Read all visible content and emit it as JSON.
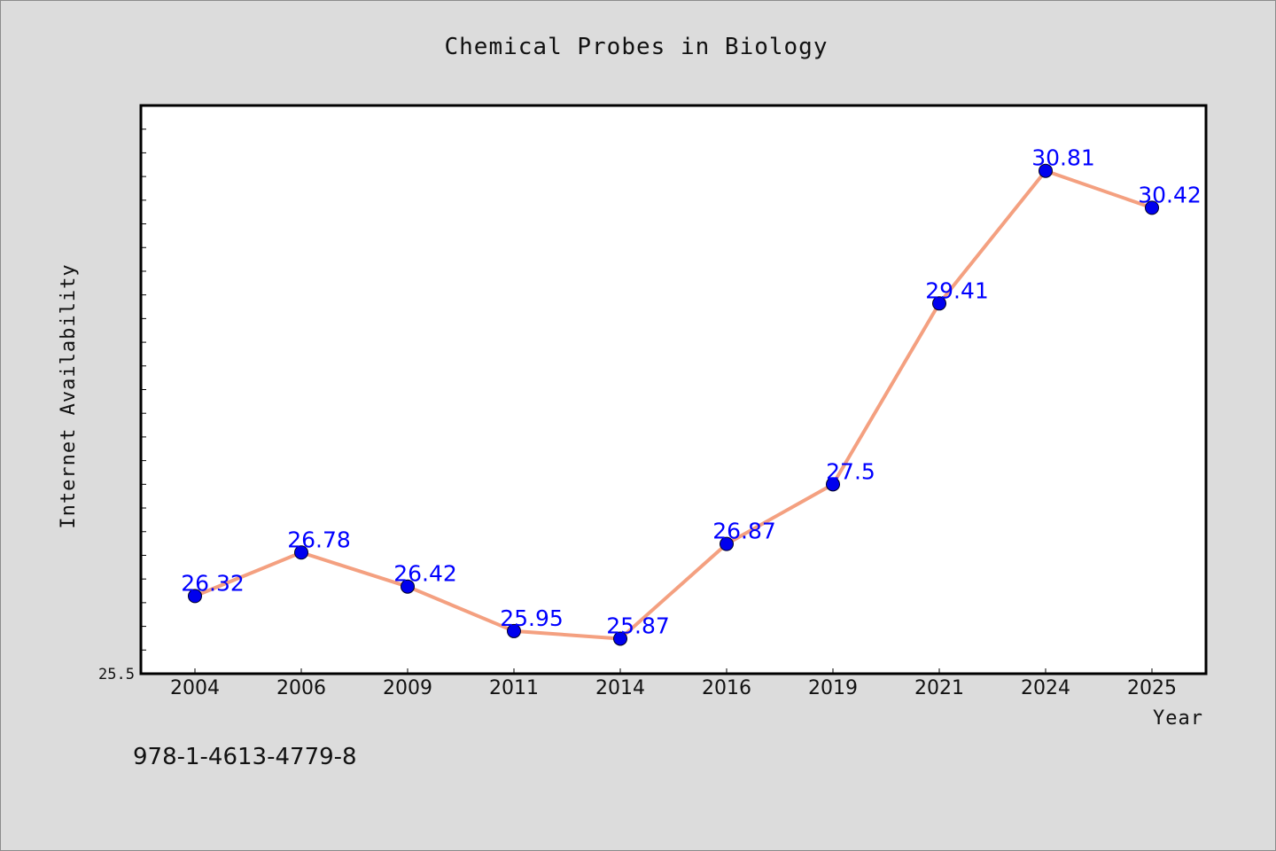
{
  "chart_data": {
    "type": "line",
    "title": "Chemical Probes in Biology",
    "xlabel": "Year",
    "ylabel": "Internet Availability",
    "categories": [
      "2004",
      "2006",
      "2009",
      "2011",
      "2014",
      "2016",
      "2019",
      "2021",
      "2024",
      "2025"
    ],
    "series": [
      {
        "values": [
          26.32,
          26.78,
          26.42,
          25.95,
          25.87,
          26.87,
          27.5,
          29.41,
          30.81,
          30.42
        ]
      }
    ],
    "data_labels": [
      "26.32",
      "26.78",
      "26.42",
      "25.95",
      "25.87",
      "26.87",
      "27.5",
      "29.41",
      "30.81",
      "30.42"
    ],
    "ylim": [
      25.5,
      31.5
    ],
    "y_tick_labels": [
      "25.5"
    ],
    "grid": false,
    "colors": {
      "line": "#f4a080",
      "marker": "#0000ee",
      "data_label": "#0000ff",
      "plot_background": "#ffffff",
      "page_background": "#dcdcdc"
    }
  },
  "footer": {
    "code": "978-1-4613-4779-8"
  }
}
